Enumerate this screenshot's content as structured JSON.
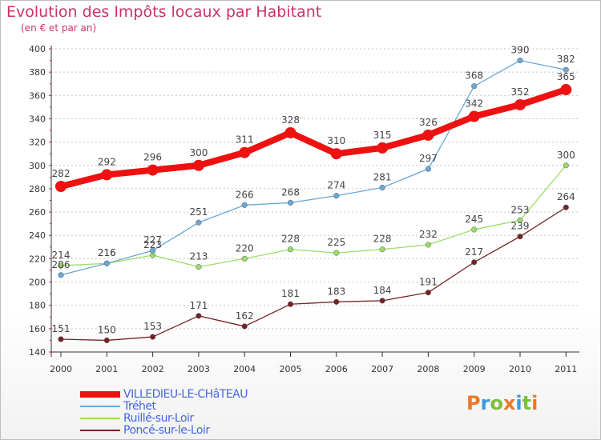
{
  "header": {
    "title": "Evolution des Impôts locaux par Habitant",
    "subtitle": "(en € et par an)"
  },
  "logo": {
    "text": "Proxiti",
    "colors": [
      "#e8792b",
      "#3a9bd9",
      "#7cbf3c",
      "#e8792b",
      "#3a9bd9",
      "#7cbf3c",
      "#e8792b"
    ]
  },
  "chart_data": {
    "type": "line",
    "title": "Evolution des Impôts locaux par Habitant",
    "subtitle": "(en € et par an)",
    "categories": [
      "2000",
      "2001",
      "2002",
      "2003",
      "2004",
      "2005",
      "2006",
      "2007",
      "2008",
      "2009",
      "2010",
      "2011"
    ],
    "ylim": [
      140,
      400
    ],
    "yticks": [
      140,
      160,
      180,
      200,
      220,
      240,
      260,
      280,
      300,
      320,
      340,
      360,
      380,
      400
    ],
    "grid": "horizontal dashed",
    "legend_position": "bottom-left",
    "series": [
      {
        "name": "VILLEDIEU-LE-CHâTEAU",
        "color": "#ee1111",
        "values": [
          282,
          292,
          296,
          300,
          311,
          328,
          310,
          315,
          326,
          342,
          352,
          365
        ]
      },
      {
        "name": "Tréhet",
        "color": "#6aa8d8",
        "values": [
          206,
          216,
          227,
          251,
          266,
          268,
          274,
          281,
          297,
          368,
          390,
          382
        ]
      },
      {
        "name": "Ruillé-sur-Loir",
        "color": "#99dd66",
        "values": [
          214,
          216,
          223,
          213,
          220,
          228,
          225,
          228,
          232,
          245,
          253,
          300
        ]
      },
      {
        "name": "Poncé-sur-le-Loir",
        "color": "#772222",
        "values": [
          151,
          150,
          153,
          171,
          162,
          181,
          183,
          184,
          191,
          217,
          239,
          264
        ]
      }
    ]
  }
}
